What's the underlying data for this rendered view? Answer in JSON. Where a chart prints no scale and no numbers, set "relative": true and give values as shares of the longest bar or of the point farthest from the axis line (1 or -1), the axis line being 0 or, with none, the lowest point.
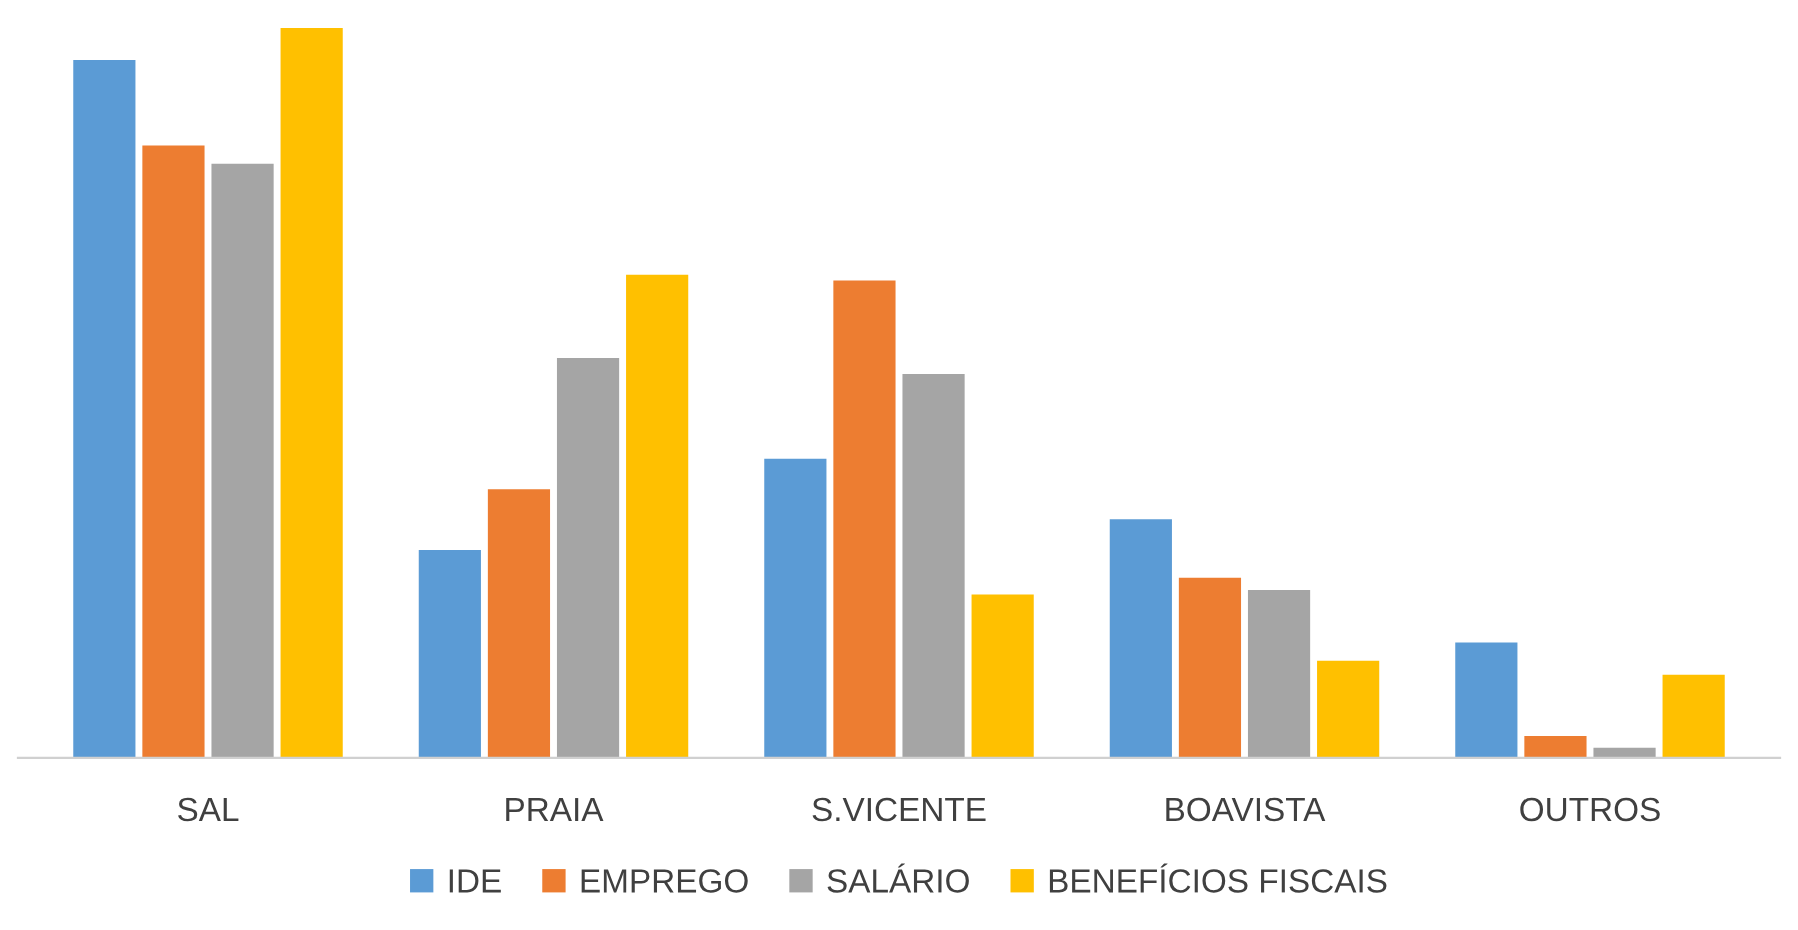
{
  "chart_data": {
    "type": "bar",
    "relative": true,
    "categories": [
      "SAL",
      "PRAIA",
      "S.VICENTE",
      "BOAVISTA",
      "OUTROS"
    ],
    "series": [
      {
        "name": "IDE",
        "color": "#5b9bd5",
        "values": [
          0.956,
          0.285,
          0.41,
          0.327,
          0.158
        ]
      },
      {
        "name": "EMPREGO",
        "color": "#ed7d31",
        "values": [
          0.839,
          0.368,
          0.654,
          0.247,
          0.03
        ]
      },
      {
        "name": "SALÁRIO",
        "color": "#a5a5a5",
        "values": [
          0.814,
          0.548,
          0.526,
          0.23,
          0.014
        ]
      },
      {
        "name": "BENEFÍCIOS FISCAIS",
        "color": "#ffc000",
        "values": [
          1,
          0.662,
          0.224,
          0.133,
          0.114
        ]
      }
    ],
    "grid": false,
    "legend": "bottom"
  }
}
